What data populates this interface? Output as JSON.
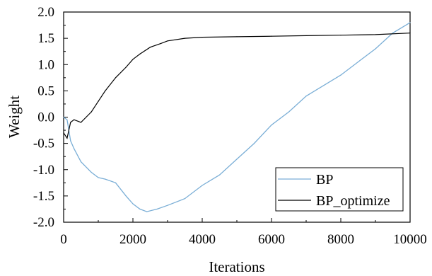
{
  "chart_data": {
    "type": "line",
    "xlabel": "Iterations",
    "ylabel": "Weight",
    "xlim": [
      0,
      10000
    ],
    "ylim": [
      -2.0,
      2.0
    ],
    "x_ticks": [
      0,
      2000,
      4000,
      6000,
      8000,
      10000
    ],
    "x_tick_labels": [
      "0",
      "2000",
      "4000",
      "6000",
      "8000",
      "10000"
    ],
    "y_ticks": [
      -2.0,
      -1.5,
      -1.0,
      -0.5,
      0.0,
      0.5,
      1.0,
      1.5,
      2.0
    ],
    "y_tick_labels": [
      "-2.0",
      "-1.5",
      "-1.0",
      "-0.5",
      "0.0",
      "0.5",
      "1.0",
      "1.5",
      "2.0"
    ],
    "grid": false,
    "legend_position": "bottom-right",
    "series": [
      {
        "name": "BP",
        "color": "#7aaed6",
        "x": [
          0,
          100,
          200,
          300,
          500,
          800,
          1000,
          1200,
          1500,
          1800,
          2000,
          2200,
          2400,
          2700,
          3000,
          3500,
          4000,
          4500,
          5000,
          5500,
          6000,
          6500,
          7000,
          7500,
          8000,
          8500,
          9000,
          9500,
          10000
        ],
        "y": [
          0.0,
          -0.05,
          -0.45,
          -0.6,
          -0.85,
          -1.05,
          -1.15,
          -1.18,
          -1.25,
          -1.5,
          -1.65,
          -1.75,
          -1.8,
          -1.75,
          -1.68,
          -1.55,
          -1.3,
          -1.1,
          -0.8,
          -0.5,
          -0.15,
          0.1,
          0.4,
          0.6,
          0.8,
          1.05,
          1.3,
          1.6,
          1.8
        ]
      },
      {
        "name": "BP_optimize",
        "color": "#000000",
        "x": [
          0,
          100,
          200,
          300,
          500,
          800,
          1000,
          1200,
          1500,
          1800,
          2000,
          2200,
          2500,
          2800,
          3000,
          3500,
          4000,
          5000,
          6000,
          7000,
          8000,
          9000,
          10000
        ],
        "y": [
          -0.3,
          -0.4,
          -0.1,
          -0.05,
          -0.1,
          0.1,
          0.3,
          0.5,
          0.75,
          0.95,
          1.1,
          1.2,
          1.33,
          1.4,
          1.45,
          1.5,
          1.52,
          1.53,
          1.54,
          1.55,
          1.56,
          1.57,
          1.6
        ]
      }
    ]
  }
}
